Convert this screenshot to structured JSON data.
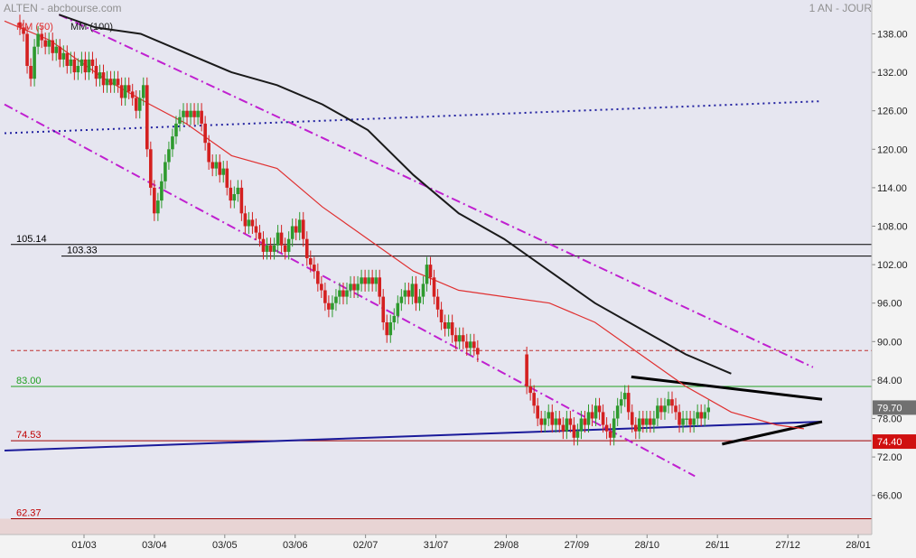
{
  "header": {
    "title": "ALTEN - abcbourse.com",
    "period": "1 AN - JOUR"
  },
  "legend": {
    "mm50": "MM (50)",
    "mm100": "MM (100)"
  },
  "colors": {
    "background_panel": "#e6e6f0",
    "price_up": "#2e9a2e",
    "price_down": "#d42020",
    "mm50": "#e03030",
    "mm100": "#1a1a1a",
    "channel": "#c020d0",
    "trend_blue": "#1a1a9a",
    "dotted_blue": "#2020a0"
  },
  "chart_data": {
    "type": "candlestick",
    "title": "ALTEN - abcbourse.com",
    "subtitle": "1 AN - JOUR",
    "ylim": [
      58.5,
      141
    ],
    "y_ticks": [
      138.0,
      132.0,
      126.0,
      120.0,
      114.0,
      108.0,
      102.0,
      96.0,
      90.0,
      84.0,
      78.0,
      72.0,
      66.0
    ],
    "x_ticks": [
      "01/03",
      "03/04",
      "03/05",
      "03/06",
      "02/07",
      "31/07",
      "29/08",
      "27/09",
      "28/10",
      "26/11",
      "27/12",
      "28/01"
    ],
    "last_price": 79.7,
    "last_price_label": "79.70",
    "marked_level_label": "74.40",
    "horizontal_levels": [
      {
        "value": 105.14,
        "label": "105.14",
        "color": "#000000",
        "style": "solid"
      },
      {
        "value": 103.33,
        "label": "103.33",
        "color": "#000000",
        "style": "solid"
      },
      {
        "value": 88.6,
        "label": "",
        "color": "#c03030",
        "style": "dashed"
      },
      {
        "value": 83.0,
        "label": "83.00",
        "color": "#20a020",
        "style": "solid"
      },
      {
        "value": 74.53,
        "label": "74.53",
        "color": "#a00000",
        "style": "solid"
      },
      {
        "value": 62.37,
        "label": "62.37",
        "color": "#a00000",
        "style": "solid"
      }
    ],
    "series": [
      {
        "name": "MM (50)",
        "type": "line",
        "points": [
          [
            0,
            140
          ],
          [
            50,
            137
          ],
          [
            110,
            131
          ],
          [
            160,
            127
          ],
          [
            200,
            124
          ],
          [
            250,
            119
          ],
          [
            300,
            117
          ],
          [
            350,
            111
          ],
          [
            400,
            106
          ],
          [
            450,
            101
          ],
          [
            500,
            98
          ],
          [
            550,
            97
          ],
          [
            600,
            96
          ],
          [
            650,
            93
          ],
          [
            700,
            88
          ],
          [
            750,
            83
          ],
          [
            800,
            79
          ],
          [
            850,
            77
          ],
          [
            880,
            76.4
          ]
        ]
      },
      {
        "name": "MM (100)",
        "type": "line",
        "points": [
          [
            60,
            141
          ],
          [
            100,
            139
          ],
          [
            150,
            138
          ],
          [
            200,
            135
          ],
          [
            250,
            132
          ],
          [
            300,
            130
          ],
          [
            350,
            127
          ],
          [
            400,
            123
          ],
          [
            450,
            116
          ],
          [
            500,
            110
          ],
          [
            550,
            106
          ],
          [
            600,
            101
          ],
          [
            650,
            96
          ],
          [
            700,
            92
          ],
          [
            750,
            88
          ],
          [
            800,
            85
          ]
        ]
      }
    ],
    "candles": [
      {
        "x": 2,
        "c": 139
      },
      {
        "x": 6,
        "c": 138
      },
      {
        "x": 10,
        "c": 133
      },
      {
        "x": 14,
        "c": 131
      },
      {
        "x": 18,
        "c": 136
      },
      {
        "x": 22,
        "c": 138
      },
      {
        "x": 26,
        "c": 137
      },
      {
        "x": 30,
        "c": 136
      },
      {
        "x": 34,
        "c": 137
      },
      {
        "x": 38,
        "c": 135
      },
      {
        "x": 42,
        "c": 136
      },
      {
        "x": 46,
        "c": 134
      },
      {
        "x": 50,
        "c": 135
      },
      {
        "x": 54,
        "c": 133
      },
      {
        "x": 58,
        "c": 134
      },
      {
        "x": 62,
        "c": 132
      },
      {
        "x": 66,
        "c": 133
      },
      {
        "x": 70,
        "c": 134
      },
      {
        "x": 74,
        "c": 132
      },
      {
        "x": 78,
        "c": 134
      },
      {
        "x": 82,
        "c": 133
      },
      {
        "x": 86,
        "c": 131
      },
      {
        "x": 90,
        "c": 132
      },
      {
        "x": 94,
        "c": 130
      },
      {
        "x": 98,
        "c": 131
      },
      {
        "x": 102,
        "c": 130
      },
      {
        "x": 106,
        "c": 131
      },
      {
        "x": 110,
        "c": 130
      },
      {
        "x": 114,
        "c": 128
      },
      {
        "x": 118,
        "c": 130
      },
      {
        "x": 122,
        "c": 129
      },
      {
        "x": 126,
        "c": 128
      },
      {
        "x": 130,
        "c": 126
      },
      {
        "x": 134,
        "c": 128
      },
      {
        "x": 138,
        "c": 130
      },
      {
        "x": 142,
        "c": 120
      },
      {
        "x": 146,
        "c": 114
      },
      {
        "x": 150,
        "c": 110
      },
      {
        "x": 154,
        "c": 112
      },
      {
        "x": 158,
        "c": 115
      },
      {
        "x": 162,
        "c": 118
      },
      {
        "x": 166,
        "c": 120
      },
      {
        "x": 170,
        "c": 122
      },
      {
        "x": 174,
        "c": 124
      },
      {
        "x": 178,
        "c": 125
      },
      {
        "x": 182,
        "c": 126
      },
      {
        "x": 186,
        "c": 125
      },
      {
        "x": 190,
        "c": 126
      },
      {
        "x": 194,
        "c": 125
      },
      {
        "x": 198,
        "c": 126
      },
      {
        "x": 202,
        "c": 124
      },
      {
        "x": 206,
        "c": 121
      },
      {
        "x": 210,
        "c": 118
      },
      {
        "x": 214,
        "c": 117
      },
      {
        "x": 218,
        "c": 118
      },
      {
        "x": 222,
        "c": 116
      },
      {
        "x": 226,
        "c": 117
      },
      {
        "x": 230,
        "c": 114
      },
      {
        "x": 234,
        "c": 112
      },
      {
        "x": 238,
        "c": 113
      },
      {
        "x": 242,
        "c": 114
      },
      {
        "x": 246,
        "c": 110
      },
      {
        "x": 250,
        "c": 108
      },
      {
        "x": 254,
        "c": 109
      },
      {
        "x": 258,
        "c": 108
      },
      {
        "x": 262,
        "c": 107
      },
      {
        "x": 266,
        "c": 106
      },
      {
        "x": 270,
        "c": 104
      },
      {
        "x": 274,
        "c": 105
      },
      {
        "x": 278,
        "c": 104
      },
      {
        "x": 282,
        "c": 105
      },
      {
        "x": 286,
        "c": 107
      },
      {
        "x": 290,
        "c": 105
      },
      {
        "x": 294,
        "c": 104
      },
      {
        "x": 298,
        "c": 106
      },
      {
        "x": 302,
        "c": 108
      },
      {
        "x": 306,
        "c": 107
      },
      {
        "x": 310,
        "c": 109
      },
      {
        "x": 314,
        "c": 106
      },
      {
        "x": 318,
        "c": 103
      },
      {
        "x": 322,
        "c": 102
      },
      {
        "x": 326,
        "c": 101
      },
      {
        "x": 330,
        "c": 99
      },
      {
        "x": 334,
        "c": 98
      },
      {
        "x": 338,
        "c": 96
      },
      {
        "x": 342,
        "c": 95
      },
      {
        "x": 346,
        "c": 96
      },
      {
        "x": 350,
        "c": 97
      },
      {
        "x": 354,
        "c": 98
      },
      {
        "x": 358,
        "c": 97
      },
      {
        "x": 362,
        "c": 98
      },
      {
        "x": 366,
        "c": 99
      },
      {
        "x": 370,
        "c": 98
      },
      {
        "x": 374,
        "c": 99
      },
      {
        "x": 378,
        "c": 100
      },
      {
        "x": 382,
        "c": 99
      },
      {
        "x": 386,
        "c": 100
      },
      {
        "x": 390,
        "c": 99
      },
      {
        "x": 394,
        "c": 100
      },
      {
        "x": 398,
        "c": 97
      },
      {
        "x": 402,
        "c": 93
      },
      {
        "x": 406,
        "c": 91
      },
      {
        "x": 410,
        "c": 93
      },
      {
        "x": 414,
        "c": 94
      },
      {
        "x": 418,
        "c": 96
      },
      {
        "x": 422,
        "c": 97
      },
      {
        "x": 426,
        "c": 98
      },
      {
        "x": 430,
        "c": 97
      },
      {
        "x": 434,
        "c": 99
      },
      {
        "x": 438,
        "c": 96
      },
      {
        "x": 442,
        "c": 97
      },
      {
        "x": 446,
        "c": 99
      },
      {
        "x": 450,
        "c": 102
      },
      {
        "x": 454,
        "c": 100
      },
      {
        "x": 458,
        "c": 97
      },
      {
        "x": 462,
        "c": 95
      },
      {
        "x": 466,
        "c": 93
      },
      {
        "x": 470,
        "c": 92
      },
      {
        "x": 474,
        "c": 93
      },
      {
        "x": 478,
        "c": 91
      },
      {
        "x": 482,
        "c": 90
      },
      {
        "x": 486,
        "c": 91
      },
      {
        "x": 490,
        "c": 90
      },
      {
        "x": 494,
        "c": 89
      },
      {
        "x": 498,
        "c": 90
      },
      {
        "x": 502,
        "c": 89
      },
      {
        "x": 506,
        "c": 88
      },
      {
        "x": 560,
        "c": 83
      },
      {
        "x": 564,
        "c": 82
      },
      {
        "x": 568,
        "c": 80
      },
      {
        "x": 572,
        "c": 78
      },
      {
        "x": 576,
        "c": 77
      },
      {
        "x": 580,
        "c": 78
      },
      {
        "x": 584,
        "c": 79
      },
      {
        "x": 588,
        "c": 77
      },
      {
        "x": 592,
        "c": 78
      },
      {
        "x": 596,
        "c": 77
      },
      {
        "x": 600,
        "c": 76
      },
      {
        "x": 604,
        "c": 78
      },
      {
        "x": 608,
        "c": 77
      },
      {
        "x": 612,
        "c": 75
      },
      {
        "x": 616,
        "c": 76
      },
      {
        "x": 620,
        "c": 78
      },
      {
        "x": 624,
        "c": 77
      },
      {
        "x": 628,
        "c": 79
      },
      {
        "x": 632,
        "c": 78
      },
      {
        "x": 636,
        "c": 80
      },
      {
        "x": 640,
        "c": 79
      },
      {
        "x": 644,
        "c": 77
      },
      {
        "x": 648,
        "c": 76
      },
      {
        "x": 652,
        "c": 75
      },
      {
        "x": 656,
        "c": 78
      },
      {
        "x": 660,
        "c": 80
      },
      {
        "x": 664,
        "c": 81
      },
      {
        "x": 668,
        "c": 82
      },
      {
        "x": 672,
        "c": 79
      },
      {
        "x": 676,
        "c": 77
      },
      {
        "x": 680,
        "c": 76
      },
      {
        "x": 684,
        "c": 78
      },
      {
        "x": 688,
        "c": 77
      },
      {
        "x": 692,
        "c": 78
      },
      {
        "x": 696,
        "c": 77
      },
      {
        "x": 700,
        "c": 78
      },
      {
        "x": 704,
        "c": 80
      },
      {
        "x": 708,
        "c": 79
      },
      {
        "x": 712,
        "c": 80
      },
      {
        "x": 716,
        "c": 81
      },
      {
        "x": 720,
        "c": 80
      },
      {
        "x": 724,
        "c": 79
      },
      {
        "x": 728,
        "c": 77
      },
      {
        "x": 732,
        "c": 78
      },
      {
        "x": 736,
        "c": 78
      },
      {
        "x": 740,
        "c": 77
      },
      {
        "x": 744,
        "c": 78
      },
      {
        "x": 748,
        "c": 79
      },
      {
        "x": 752,
        "c": 78
      },
      {
        "x": 756,
        "c": 79
      },
      {
        "x": 760,
        "c": 79.7
      }
    ],
    "trendlines": [
      {
        "name": "channel-upper",
        "color": "#c020d0",
        "style": "dashdot",
        "points": [
          [
            60,
            141
          ],
          [
            890,
            86
          ]
        ]
      },
      {
        "name": "channel-lower",
        "color": "#c020d0",
        "style": "dashdot",
        "points": [
          [
            0,
            127
          ],
          [
            760,
            69
          ]
        ]
      },
      {
        "name": "dotted-resistance",
        "color": "#2020a0",
        "style": "dotted",
        "points": [
          [
            0,
            122.5
          ],
          [
            900,
            127.5
          ]
        ]
      },
      {
        "name": "long-support",
        "color": "#1a1a9a",
        "style": "solid",
        "points": [
          [
            0,
            73
          ],
          [
            900,
            77.5
          ]
        ]
      },
      {
        "name": "triangle-top",
        "color": "#000000",
        "style": "solid",
        "points": [
          [
            690,
            84.5
          ],
          [
            900,
            81
          ]
        ]
      },
      {
        "name": "triangle-bottom",
        "color": "#000000",
        "style": "solid",
        "points": [
          [
            790,
            74
          ],
          [
            900,
            77.5
          ]
        ]
      }
    ]
  }
}
